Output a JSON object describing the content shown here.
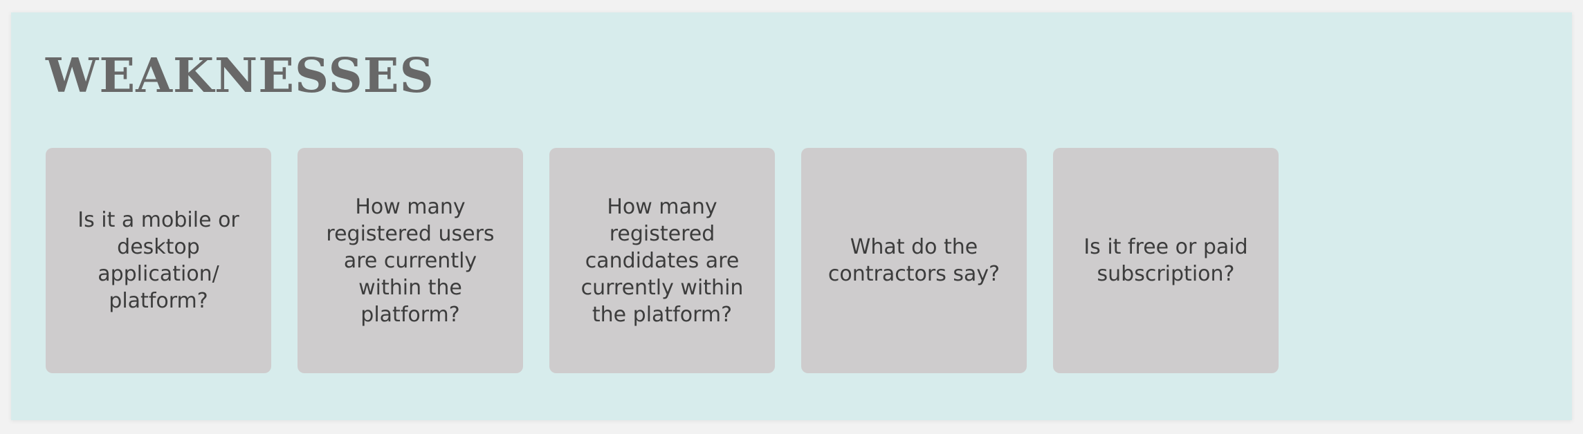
{
  "title": "WEAKNESSES",
  "colors": {
    "background": "#d7ecec",
    "card": "#cecccd",
    "title": "#686868",
    "text": "#3c3c3c"
  },
  "cards": [
    {
      "text": "Is it a mobile or desktop application/ platform?"
    },
    {
      "text": "How many registered users are currently within the platform?"
    },
    {
      "text": "How many registered candidates are currently within the platform?"
    },
    {
      "text": "What do the contractors say?"
    },
    {
      "text": "Is it free or paid subscription?"
    }
  ]
}
